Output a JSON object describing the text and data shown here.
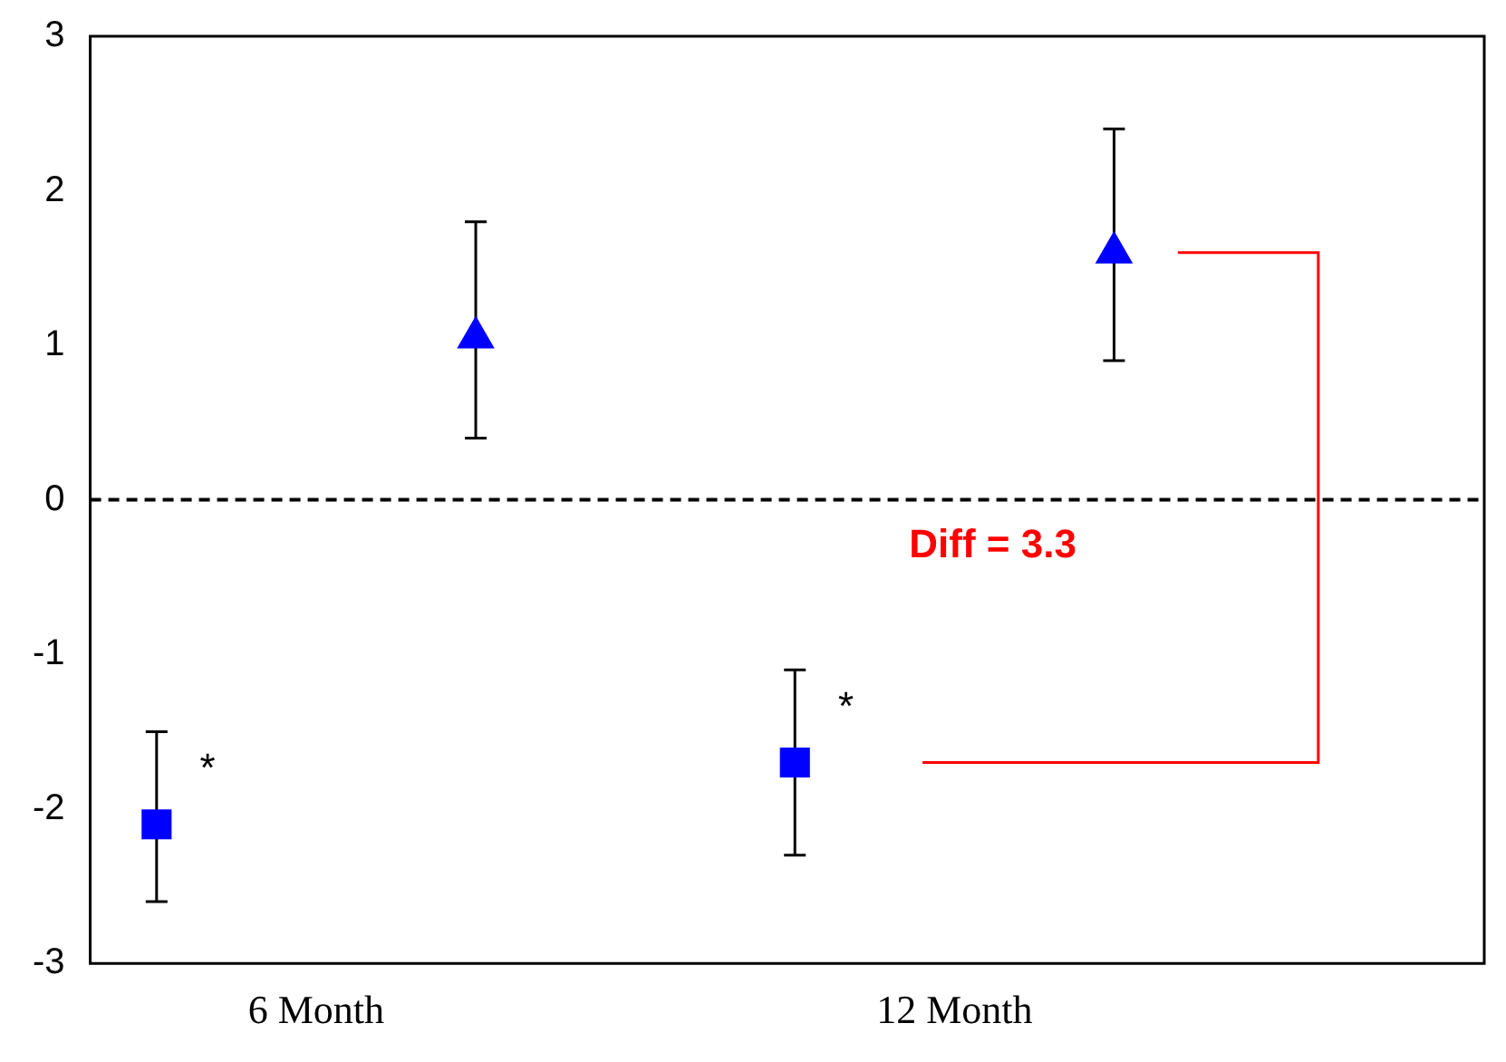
{
  "chart_data": {
    "type": "scatter",
    "categories": [
      "6 Month",
      "12 Month"
    ],
    "series": [
      {
        "color": "#0000ff",
        "marker": "square",
        "values": [
          -2.1,
          -1.7
        ],
        "errors": [
          [
            -2.6,
            -1.5
          ],
          [
            -2.3,
            -1.1
          ]
        ]
      },
      {
        "color": "#0000ff",
        "marker": "triangle",
        "values": [
          1.05,
          1.6
        ],
        "errors": [
          [
            0.4,
            1.8
          ],
          [
            0.9,
            2.4
          ]
        ]
      }
    ],
    "ylim": [
      -3,
      3
    ],
    "yticks": [
      -3,
      -2,
      -1,
      0,
      1,
      2,
      3
    ],
    "grid": false,
    "legend": false,
    "ref_lines": [
      {
        "axis": "y",
        "value": 0,
        "line_style": "dashed",
        "color": "#000000"
      }
    ],
    "annotations": [
      "*",
      "*",
      "Diff = 3.3"
    ]
  }
}
